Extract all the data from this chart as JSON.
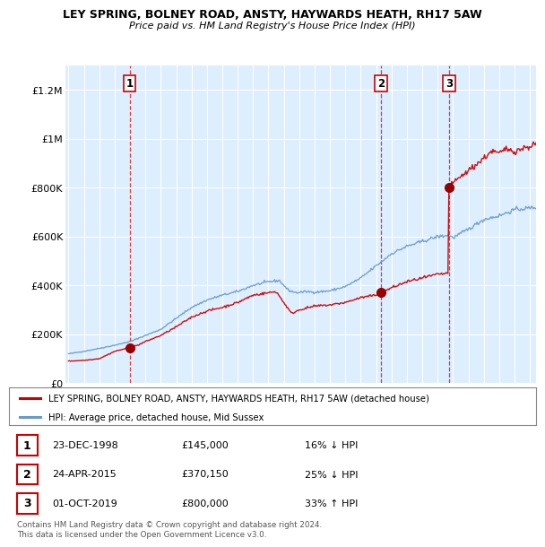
{
  "title": "LEY SPRING, BOLNEY ROAD, ANSTY, HAYWARDS HEATH, RH17 5AW",
  "subtitle": "Price paid vs. HM Land Registry's House Price Index (HPI)",
  "ylabel_ticks": [
    "£0",
    "£200K",
    "£400K",
    "£600K",
    "£800K",
    "£1M",
    "£1.2M"
  ],
  "ytick_vals": [
    0,
    200000,
    400000,
    600000,
    800000,
    1000000,
    1200000
  ],
  "ylim": [
    0,
    1300000
  ],
  "xlim_start": 1994.8,
  "xlim_end": 2025.4,
  "red_line_color": "#cc0000",
  "blue_line_color": "#6699cc",
  "plot_bg_color": "#ddeeff",
  "sale_marker_color": "#990000",
  "vline_color": "#cc0000",
  "sale_times": [
    1998.97,
    2015.31,
    2019.75
  ],
  "sale_prices": [
    145000,
    370150,
    800000
  ],
  "legend_entries": [
    "LEY SPRING, BOLNEY ROAD, ANSTY, HAYWARDS HEATH, RH17 5AW (detached house)",
    "HPI: Average price, detached house, Mid Sussex"
  ],
  "table_rows": [
    {
      "num": "1",
      "date": "23-DEC-1998",
      "price": "£145,000",
      "pct": "16%",
      "dir": "↓",
      "hpi": "HPI"
    },
    {
      "num": "2",
      "date": "24-APR-2015",
      "price": "£370,150",
      "pct": "25%",
      "dir": "↓",
      "hpi": "HPI"
    },
    {
      "num": "3",
      "date": "01-OCT-2019",
      "price": "£800,000",
      "pct": "33%",
      "dir": "↑",
      "hpi": "HPI"
    }
  ],
  "footer": "Contains HM Land Registry data © Crown copyright and database right 2024.\nThis data is licensed under the Open Government Licence v3.0.",
  "background_color": "#ffffff",
  "grid_color": "#ffffff"
}
